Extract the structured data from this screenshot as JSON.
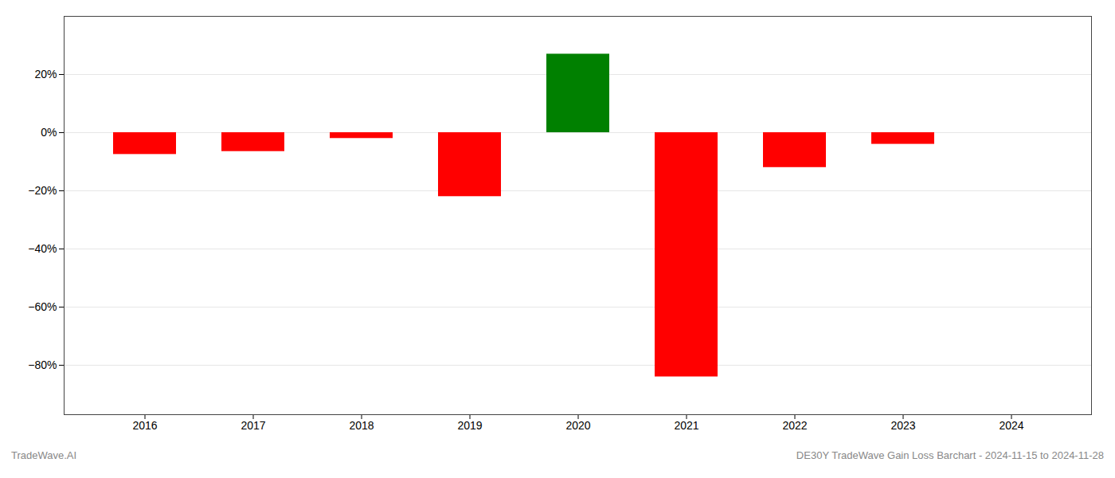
{
  "chart_data": {
    "type": "bar",
    "title": "DE30Y TradeWave Gain Loss Barchart - 2024-11-15 to 2024-11-28",
    "annotations": [
      "TradeWave.AI"
    ],
    "categories": [
      "2016",
      "2017",
      "2018",
      "2019",
      "2020",
      "2021",
      "2022",
      "2023",
      "2024"
    ],
    "values": [
      -0.075,
      -0.065,
      -0.02,
      -0.22,
      0.27,
      -0.84,
      -0.12,
      -0.04,
      0.0
    ],
    "colors": [
      "#ff0000",
      "#ff0000",
      "#ff0000",
      "#ff0000",
      "#008000",
      "#ff0000",
      "#ff0000",
      "#ff0000",
      "#ff0000"
    ],
    "ylim": [
      -0.97,
      0.4
    ],
    "yticks": [
      {
        "value": -0.8,
        "label": "−80%"
      },
      {
        "value": -0.6,
        "label": "−60%"
      },
      {
        "value": -0.4,
        "label": "−40%"
      },
      {
        "value": -0.2,
        "label": "−20%"
      },
      {
        "value": 0.0,
        "label": "0%"
      },
      {
        "value": 0.2,
        "label": "20%"
      }
    ],
    "grid": true
  }
}
